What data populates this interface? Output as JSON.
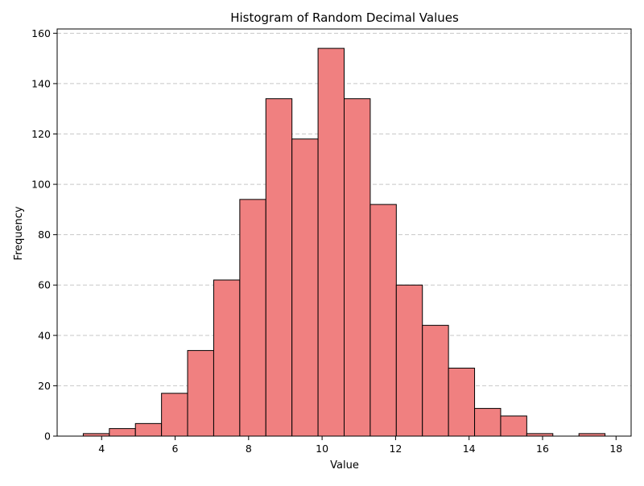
{
  "chart_data": {
    "type": "bar",
    "title": "Histogram of Random Decimal Values",
    "xlabel": "Value",
    "ylabel": "Frequency",
    "bins": {
      "edges": [
        3.5,
        4.21,
        4.92,
        5.63,
        6.34,
        7.05,
        7.76,
        8.47,
        9.18,
        9.89,
        10.6,
        11.31,
        12.02,
        12.73,
        13.44,
        14.15,
        14.86,
        15.57,
        16.28,
        16.99,
        17.7
      ],
      "counts": [
        1,
        3,
        5,
        17,
        34,
        62,
        94,
        134,
        118,
        154,
        134,
        92,
        60,
        44,
        27,
        11,
        8,
        1,
        0,
        1
      ]
    },
    "xlim": [
      2.79,
      18.41
    ],
    "ylim": [
      0,
      161.7
    ],
    "xticks": [
      4,
      6,
      8,
      10,
      12,
      14,
      16,
      18
    ],
    "yticks": [
      0,
      20,
      40,
      60,
      80,
      100,
      120,
      140,
      160
    ],
    "grid": {
      "axis": "y",
      "style": "dashed",
      "color": "#c8c8c8"
    },
    "colors": {
      "bar_fill": "#f08080",
      "bar_edge": "#000000"
    }
  }
}
